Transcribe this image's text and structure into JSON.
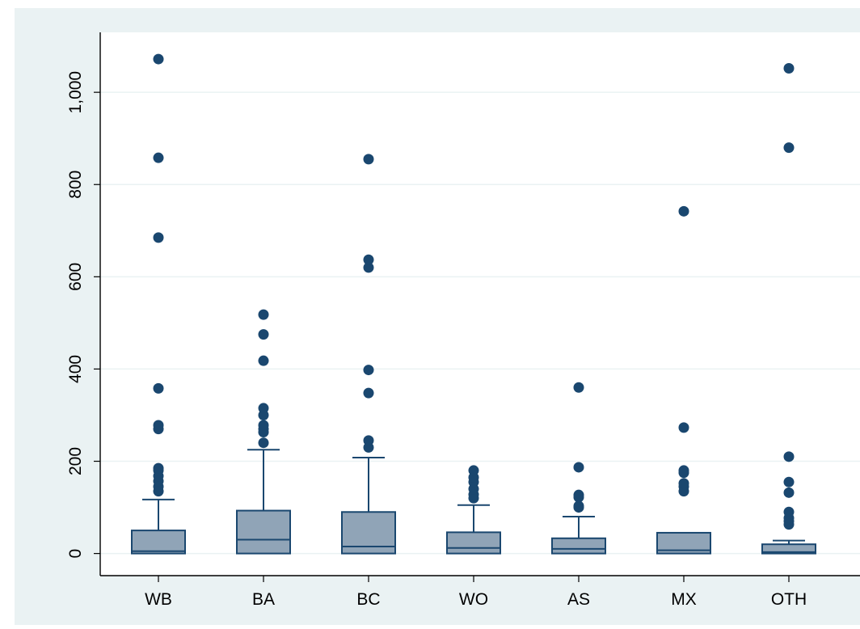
{
  "chart_data": {
    "type": "box",
    "categories": [
      "WB",
      "BA",
      "BC",
      "WO",
      "AS",
      "MX",
      "OTH"
    ],
    "ylim": [
      -48,
      1130
    ],
    "yticks": [
      {
        "value": 0,
        "label": "0"
      },
      {
        "value": 200,
        "label": "200"
      },
      {
        "value": 400,
        "label": "400"
      },
      {
        "value": 600,
        "label": "600"
      },
      {
        "value": 800,
        "label": "800"
      },
      {
        "value": 1000,
        "label": "1,000"
      }
    ],
    "grid": true,
    "title": "",
    "xlabel": "",
    "ylabel": "",
    "boxes": [
      {
        "category": "WB",
        "min": 0,
        "q1": 0,
        "median": 5,
        "q3": 50,
        "whisker_high": 117,
        "outliers": [
          135,
          145,
          157,
          168,
          180,
          185,
          270,
          278,
          358,
          685,
          858,
          1072
        ]
      },
      {
        "category": "BA",
        "min": 0,
        "q1": 0,
        "median": 30,
        "q3": 93,
        "whisker_high": 225,
        "outliers": [
          240,
          263,
          270,
          278,
          300,
          315,
          418,
          475,
          518
        ]
      },
      {
        "category": "BC",
        "min": 0,
        "q1": 0,
        "median": 15,
        "q3": 90,
        "whisker_high": 208,
        "outliers": [
          230,
          245,
          348,
          398,
          620,
          637,
          855
        ]
      },
      {
        "category": "WO",
        "min": 0,
        "q1": 0,
        "median": 12,
        "q3": 46,
        "whisker_high": 105,
        "outliers": [
          120,
          128,
          140,
          155,
          165,
          180
        ]
      },
      {
        "category": "AS",
        "min": 0,
        "q1": 0,
        "median": 10,
        "q3": 33,
        "whisker_high": 80,
        "outliers": [
          100,
          103,
          122,
          127,
          187,
          360
        ]
      },
      {
        "category": "MX",
        "min": 0,
        "q1": 0,
        "median": 7,
        "q3": 45,
        "whisker_high": 45,
        "outliers": [
          135,
          145,
          152,
          175,
          180,
          273,
          742
        ]
      },
      {
        "category": "OTH",
        "min": 0,
        "q1": 0,
        "median": 3,
        "q3": 20,
        "whisker_high": 28,
        "outliers": [
          63,
          70,
          77,
          90,
          132,
          155,
          210,
          880,
          1052
        ]
      }
    ]
  },
  "colors": {
    "outer_background": "#eaf2f3",
    "plot_background": "#ffffff",
    "grid": "#eaf2f3",
    "box_fill": "#90a4b7",
    "box_stroke": "#1a476f",
    "marker": "#1a476f",
    "axis": "#000000"
  }
}
